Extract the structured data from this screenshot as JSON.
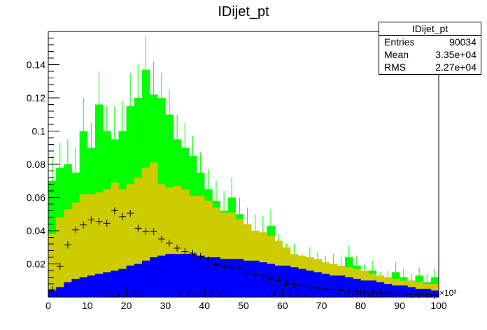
{
  "title": "IDijet_pt",
  "stats": {
    "name": "IDijet_pt",
    "rows": [
      {
        "label": "Entries",
        "value": "90034"
      },
      {
        "label": "Mean",
        "value": "3.35e+04"
      },
      {
        "label": "RMS",
        "value": "2.27e+04"
      }
    ]
  },
  "chart_data": {
    "type": "bar",
    "title": "IDijet_pt",
    "x_unit_label": "×10³",
    "xlim": [
      0,
      100
    ],
    "ylim": [
      0,
      0.16
    ],
    "x_ticks": [
      0,
      10,
      20,
      30,
      40,
      50,
      60,
      70,
      80,
      90,
      100
    ],
    "y_ticks": [
      0.02,
      0.04,
      0.06,
      0.08,
      0.1,
      0.12,
      0.14
    ],
    "y_tick_labels": [
      "0.02",
      "0.04",
      "0.06",
      "0.08",
      "0.1",
      "0.12",
      "0.14"
    ],
    "bin_width": 2,
    "bins_x": [
      0,
      2,
      4,
      6,
      8,
      10,
      12,
      14,
      16,
      18,
      20,
      22,
      24,
      26,
      28,
      30,
      32,
      34,
      36,
      38,
      40,
      42,
      44,
      46,
      48,
      50,
      52,
      54,
      56,
      58,
      60,
      62,
      64,
      66,
      68,
      70,
      72,
      74,
      76,
      78,
      80,
      82,
      84,
      86,
      88,
      90,
      92,
      94,
      96,
      98
    ],
    "series": [
      {
        "color": "#00ff00",
        "values": [
          0.07,
          0.078,
          0.08,
          0.075,
          0.1,
          0.09,
          0.116,
          0.1,
          0.095,
          0.1,
          0.115,
          0.12,
          0.137,
          0.122,
          0.12,
          0.11,
          0.095,
          0.09,
          0.085,
          0.075,
          0.065,
          0.058,
          0.052,
          0.06,
          0.05,
          0.044,
          0.04,
          0.039,
          0.043,
          0.03,
          0.025,
          0.025,
          0.02,
          0.023,
          0.021,
          0.019,
          0.02,
          0.018,
          0.024,
          0.019,
          0.014,
          0.016,
          0.01,
          0.011,
          0.015,
          0.012,
          0.009,
          0.013,
          0.009,
          0.012
        ],
        "errors": [
          0.015,
          0.015,
          0.015,
          0.015,
          0.02,
          0.015,
          0.02,
          0.015,
          0.02,
          0.018,
          0.02,
          0.02,
          0.02,
          0.02,
          0.015,
          0.015,
          0.015,
          0.015,
          0.012,
          0.012,
          0.012,
          0.012,
          0.012,
          0.012,
          0.01,
          0.01,
          0.01,
          0.01,
          0.01,
          0.008,
          0.007,
          0.007,
          0.006,
          0.007,
          0.006,
          0.006,
          0.006,
          0.006,
          0.007,
          0.006,
          0.006,
          0.006,
          0.005,
          0.005,
          0.006,
          0.005,
          0.005,
          0.005,
          0.005,
          0.005
        ]
      },
      {
        "color": "#cccc00",
        "values": [
          0.038,
          0.048,
          0.053,
          0.057,
          0.062,
          0.062,
          0.063,
          0.065,
          0.069,
          0.065,
          0.068,
          0.072,
          0.078,
          0.081,
          0.068,
          0.066,
          0.067,
          0.065,
          0.061,
          0.061,
          0.058,
          0.054,
          0.051,
          0.051,
          0.047,
          0.044,
          0.04,
          0.039,
          0.037,
          0.034,
          0.03,
          0.026,
          0.025,
          0.024,
          0.023,
          0.021,
          0.02,
          0.019,
          0.018,
          0.017,
          0.016,
          0.014,
          0.013,
          0.012,
          0.011,
          0.01,
          0.01,
          0.009,
          0.008,
          0.008
        ]
      },
      {
        "color": "#0000ff",
        "values": [
          0.004,
          0.006,
          0.009,
          0.011,
          0.012,
          0.013,
          0.014,
          0.015,
          0.016,
          0.017,
          0.019,
          0.02,
          0.022,
          0.024,
          0.025,
          0.026,
          0.026,
          0.026,
          0.026,
          0.025,
          0.024,
          0.024,
          0.023,
          0.023,
          0.023,
          0.022,
          0.022,
          0.021,
          0.02,
          0.019,
          0.019,
          0.018,
          0.017,
          0.016,
          0.015,
          0.014,
          0.013,
          0.013,
          0.012,
          0.011,
          0.01,
          0.01,
          0.009,
          0.008,
          0.007,
          0.007,
          0.006,
          0.005,
          0.005,
          0.004
        ]
      },
      {
        "type": "markers",
        "color": "#000000",
        "values": [
          0.0045,
          0.0185,
          0.0315,
          0.0405,
          0.0435,
          0.0465,
          0.0455,
          0.0445,
          0.052,
          0.0485,
          0.0505,
          0.0415,
          0.0395,
          0.0395,
          0.035,
          0.0325,
          0.0295,
          0.0275,
          0.0265,
          0.0245,
          0.0225,
          0.0195,
          0.0185,
          0.018,
          0.0175,
          0.0145,
          0.0135,
          0.012,
          0.011,
          0.01,
          0.008,
          0.0075,
          0.007,
          0.006,
          0.0055,
          0.005,
          0.0045,
          0.004,
          0.0035,
          0.0035,
          0.003,
          0.003,
          0.0025,
          0.0025,
          0.002,
          0.002,
          0.0015,
          0.0015,
          0.0015,
          0.001
        ]
      }
    ]
  }
}
